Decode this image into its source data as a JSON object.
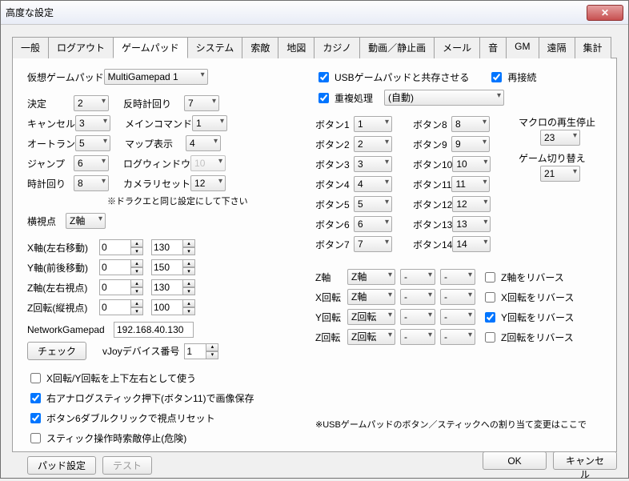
{
  "window": {
    "title": "高度な設定"
  },
  "tabs": [
    "一般",
    "ログアウト",
    "ゲームパッド",
    "システム",
    "索敵",
    "地図",
    "カジノ",
    "動画／静止画",
    "メール",
    "音",
    "GM",
    "遠隔",
    "集計"
  ],
  "activeTab": 2,
  "left": {
    "virtualGamepad": {
      "label": "仮想ゲームパッド",
      "value": "MultiGamepad 1"
    },
    "gridA": [
      {
        "l1": "決定",
        "v1": "2",
        "l2": "反時計回り",
        "v2": "7"
      },
      {
        "l1": "キャンセル",
        "v1": "3",
        "l2": "メインコマンド",
        "v2": "1"
      },
      {
        "l1": "オートラン",
        "v1": "5",
        "l2": "マップ表示",
        "v2": "4"
      },
      {
        "l1": "ジャンプ",
        "v1": "6",
        "l2": "ログウィンドウ",
        "v2": "10",
        "disabled": true
      },
      {
        "l1": "時計回り",
        "v1": "8",
        "l2": "カメラリセット",
        "v2": "12"
      }
    ],
    "noteDQ": "※ドラクエと同じ設定にして下さい",
    "yokoshi": {
      "label": "横視点",
      "value": "Z軸"
    },
    "axes": [
      {
        "label": "X軸(左右移動)",
        "a": "0",
        "b": "130"
      },
      {
        "label": "Y軸(前後移動)",
        "a": "0",
        "b": "150"
      },
      {
        "label": "Z軸(左右視点)",
        "a": "0",
        "b": "130"
      },
      {
        "label": "Z回転(縦視点)",
        "a": "0",
        "b": "100"
      }
    ],
    "netGamepad": {
      "label": "NetworkGamepad",
      "value": "192.168.40.130"
    },
    "checkBtn": "チェック",
    "vjoy": {
      "label": "vJoyデバイス番号",
      "value": "1"
    },
    "checks": [
      {
        "checked": false,
        "label": "X回転/Y回転を上下左右として使う"
      },
      {
        "checked": true,
        "label": "右アナログスティック押下(ボタン11)で画像保存"
      },
      {
        "checked": true,
        "label": "ボタン6ダブルクリックで視点リセット"
      },
      {
        "checked": false,
        "label": "スティック操作時索敵停止(危険)"
      }
    ],
    "padSetBtn": "パッド設定",
    "testBtn": "テスト"
  },
  "right": {
    "usbCoexist": {
      "checked": true,
      "label": "USBゲームパッドと共存させる"
    },
    "reconnect": {
      "checked": true,
      "label": "再接続"
    },
    "dup": {
      "checked": true,
      "label": "重複処理",
      "value": "(自動)"
    },
    "buttonsL": [
      {
        "l": "ボタン1",
        "v": "1"
      },
      {
        "l": "ボタン2",
        "v": "2"
      },
      {
        "l": "ボタン3",
        "v": "3"
      },
      {
        "l": "ボタン4",
        "v": "4"
      },
      {
        "l": "ボタン5",
        "v": "5"
      },
      {
        "l": "ボタン6",
        "v": "6"
      },
      {
        "l": "ボタン7",
        "v": "7"
      }
    ],
    "buttonsR": [
      {
        "l": "ボタン8",
        "v": "8"
      },
      {
        "l": "ボタン9",
        "v": "9"
      },
      {
        "l": "ボタン10",
        "v": "10"
      },
      {
        "l": "ボタン11",
        "v": "11"
      },
      {
        "l": "ボタン12",
        "v": "12"
      },
      {
        "l": "ボタン13",
        "v": "13"
      },
      {
        "l": "ボタン14",
        "v": "14"
      }
    ],
    "macroStop": {
      "label": "マクロの再生停止",
      "value": "23"
    },
    "gameSwitch": {
      "label": "ゲーム切り替え",
      "value": "21"
    },
    "axisMap": [
      {
        "l": "Z軸",
        "v": "Z軸",
        "a": "-",
        "b": "-",
        "rev": false,
        "revLabel": "Z軸をリバース"
      },
      {
        "l": "X回転",
        "v": "Z軸",
        "a": "-",
        "b": "-",
        "rev": false,
        "revLabel": "X回転をリバース"
      },
      {
        "l": "Y回転",
        "v": "Z回転",
        "a": "-",
        "b": "-",
        "rev": true,
        "revLabel": "Y回転をリバース"
      },
      {
        "l": "Z回転",
        "v": "Z回転",
        "a": "-",
        "b": "-",
        "rev": false,
        "revLabel": "Z回転をリバース"
      }
    ],
    "bottomNote": "※USBゲームパッドのボタン／スティックへの割り当て変更はここで"
  },
  "footer": {
    "ok": "OK",
    "cancel": "キャンセル"
  }
}
